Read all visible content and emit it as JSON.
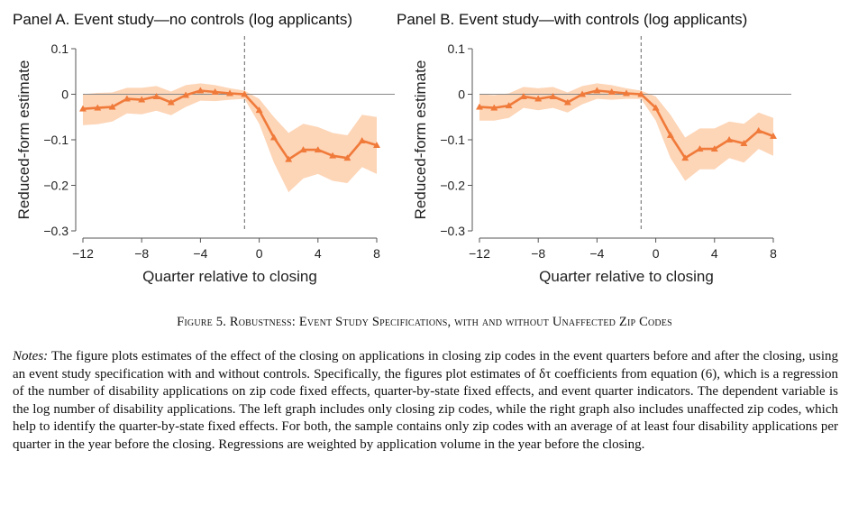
{
  "figure_caption": "Figure 5. Robustness: Event Study Specifications, with and without Unaffected Zip Codes",
  "notes_label": "Notes:",
  "notes_text": " The figure plots estimates of the effect of the closing on applications in closing zip codes in the event quarters before and after the closing, using an event study specification with and without controls. Specifically, the figures plot estimates of δτ coefficients from equation (6), which is a regression of the number of disability applications on zip code fixed effects, quarter-by-state fixed effects, and event quarter indicators. The dependent variable is the log number of disability applications. The left graph includes only closing zip codes, while the right graph also includes unaffected zip codes, which help to identify the quarter-by-state fixed effects. For both, the sample contains only zip codes with an average of at least four disability applications per quarter in the year before the closing. Regressions are weighted by application volume in the year before the closing.",
  "colors": {
    "line": "#f07a3a",
    "ci": "#fdd5b7",
    "zero": "#888888",
    "axis": "#555555"
  },
  "chart_data": [
    {
      "type": "line",
      "title": "Panel A. Event study—no controls (log applicants)",
      "xlabel": "Quarter relative to closing",
      "ylabel": "Reduced-form estimate",
      "xlim": [
        -12,
        8
      ],
      "ylim": [
        -0.3,
        0.1
      ],
      "xticks": [
        -12,
        -8,
        -4,
        0,
        4,
        8
      ],
      "xtick_labels": [
        "−12",
        "−8",
        "−4",
        "0",
        "4",
        "8"
      ],
      "yticks": [
        0.1,
        0,
        -0.1,
        -0.2,
        -0.3
      ],
      "ytick_labels": [
        "0.1",
        "0",
        "−0.1",
        "−0.2",
        "−0.3"
      ],
      "event_line_x": -1,
      "x": [
        -12,
        -11,
        -10,
        -9,
        -8,
        -7,
        -6,
        -5,
        -4,
        -3,
        -2,
        -1,
        0,
        1,
        2,
        3,
        4,
        5,
        6,
        7,
        8
      ],
      "series": [
        {
          "values": [
            -0.032,
            -0.03,
            -0.028,
            -0.01,
            -0.012,
            -0.005,
            -0.018,
            -0.002,
            0.008,
            0.005,
            0.002,
            0.0,
            -0.035,
            -0.095,
            -0.143,
            -0.122,
            -0.122,
            -0.135,
            -0.14,
            -0.102,
            -0.112
          ],
          "lower": [
            -0.068,
            -0.066,
            -0.06,
            -0.042,
            -0.044,
            -0.036,
            -0.046,
            -0.028,
            -0.014,
            -0.015,
            -0.012,
            -0.01,
            -0.065,
            -0.15,
            -0.215,
            -0.185,
            -0.175,
            -0.19,
            -0.195,
            -0.16,
            -0.175
          ],
          "upper": [
            0.0,
            0.003,
            0.004,
            0.014,
            0.014,
            0.018,
            0.006,
            0.02,
            0.024,
            0.02,
            0.013,
            0.008,
            -0.01,
            -0.05,
            -0.085,
            -0.065,
            -0.072,
            -0.085,
            -0.09,
            -0.045,
            -0.05
          ]
        }
      ]
    },
    {
      "type": "line",
      "title": "Panel B. Event study—with controls (log applicants)",
      "xlabel": "Quarter relative to closing",
      "ylabel": "Reduced-form estimate",
      "xlim": [
        -12,
        8
      ],
      "ylim": [
        -0.3,
        0.1
      ],
      "xticks": [
        -12,
        -8,
        -4,
        0,
        4,
        8
      ],
      "xtick_labels": [
        "−12",
        "−8",
        "−4",
        "0",
        "4",
        "8"
      ],
      "yticks": [
        0.1,
        0,
        -0.1,
        -0.2,
        -0.3
      ],
      "ytick_labels": [
        "0.1",
        "0",
        "−0.1",
        "−0.2",
        "−0.3"
      ],
      "event_line_x": -1,
      "x": [
        -12,
        -11,
        -10,
        -9,
        -8,
        -7,
        -6,
        -5,
        -4,
        -3,
        -2,
        -1,
        0,
        1,
        2,
        3,
        4,
        5,
        6,
        7,
        8
      ],
      "series": [
        {
          "values": [
            -0.028,
            -0.03,
            -0.025,
            -0.005,
            -0.01,
            -0.005,
            -0.018,
            0.0,
            0.008,
            0.005,
            0.002,
            0.0,
            -0.03,
            -0.09,
            -0.14,
            -0.12,
            -0.12,
            -0.1,
            -0.108,
            -0.08,
            -0.092
          ],
          "lower": [
            -0.058,
            -0.058,
            -0.052,
            -0.03,
            -0.035,
            -0.03,
            -0.04,
            -0.022,
            -0.01,
            -0.012,
            -0.01,
            -0.01,
            -0.058,
            -0.14,
            -0.19,
            -0.165,
            -0.165,
            -0.14,
            -0.15,
            -0.12,
            -0.135
          ],
          "upper": [
            0.0,
            -0.002,
            0.002,
            0.016,
            0.013,
            0.016,
            0.004,
            0.018,
            0.024,
            0.02,
            0.013,
            0.008,
            -0.005,
            -0.045,
            -0.095,
            -0.075,
            -0.075,
            -0.06,
            -0.065,
            -0.04,
            -0.052
          ]
        }
      ]
    }
  ]
}
